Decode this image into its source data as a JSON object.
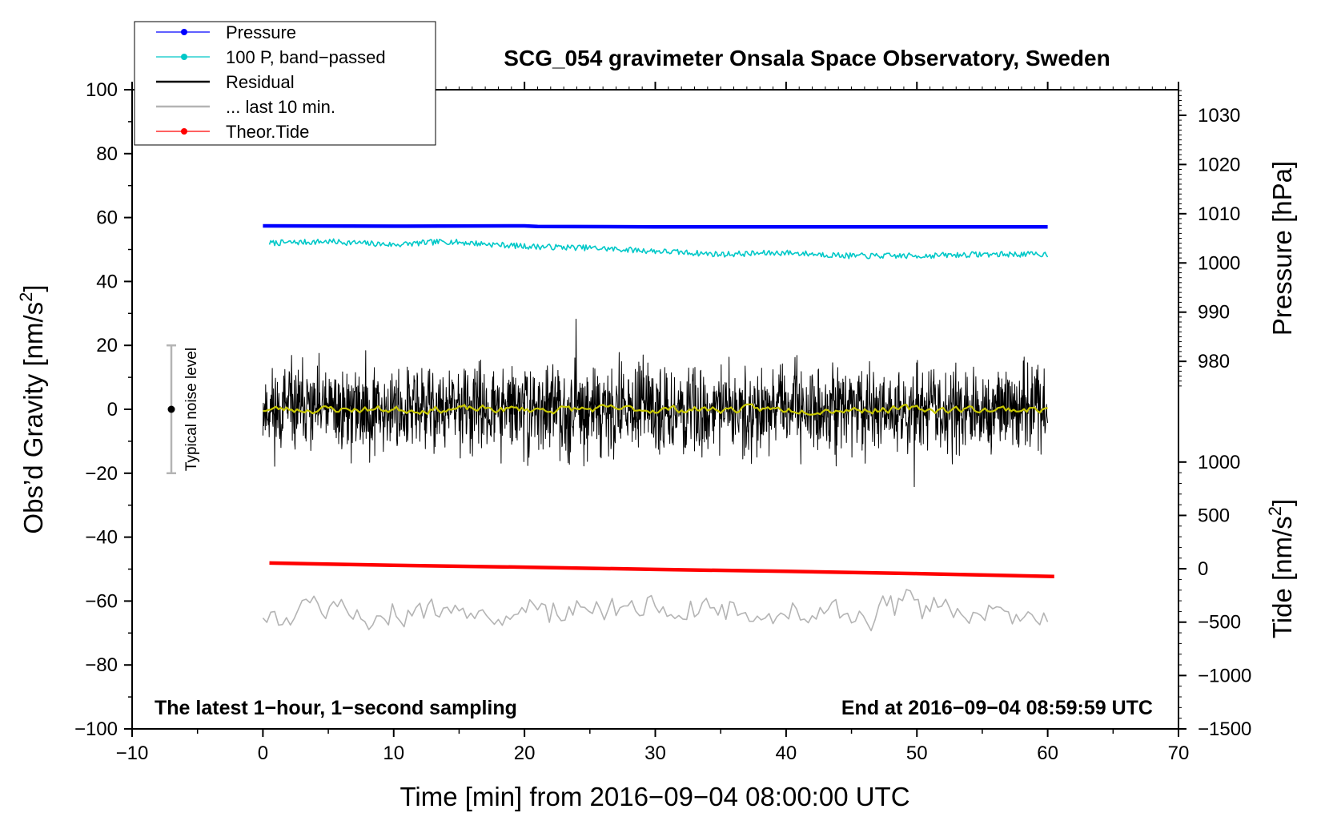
{
  "chart_data": {
    "type": "line",
    "title": "SCG_054 gravimeter Onsala Space Observatory, Sweden",
    "xlabel": "Time [min] from 2016−09−04 08:00:00 UTC",
    "ylabel_left_main": "Obs’d Gravity [nm/s",
    "ylabel_left_sup": "2",
    "ylabel_left_end": "]",
    "ylabel_right_pressure": "Pressure [hPa]",
    "ylabel_right_tide_main": "Tide [nm/s",
    "ylabel_right_tide_sup": "2",
    "ylabel_right_tide_end": "]",
    "xlim": [
      -10,
      70
    ],
    "ylim": [
      -100,
      100
    ],
    "x_ticks": [
      -10,
      0,
      10,
      20,
      30,
      40,
      50,
      60,
      70
    ],
    "x_tick_labels": [
      "−10",
      "0",
      "10",
      "20",
      "30",
      "40",
      "50",
      "60",
      "70"
    ],
    "y_ticks": [
      -100,
      -80,
      -60,
      -40,
      -20,
      0,
      20,
      40,
      60,
      80,
      100
    ],
    "y_tick_labels": [
      "−100",
      "−80",
      "−60",
      "−40",
      "−20",
      "0",
      "20",
      "40",
      "60",
      "80",
      "100"
    ],
    "pressure_axis": {
      "ticks": [
        980,
        990,
        1000,
        1010,
        1020,
        1030
      ],
      "tick_labels": [
        "980",
        "990",
        "1000",
        "1010",
        "1020",
        "1030"
      ],
      "map": {
        "v0": 980,
        "y0": 15,
        "v1": 1030,
        "y1": 92
      }
    },
    "tide_axis": {
      "ticks": [
        -1500,
        -1000,
        -500,
        0,
        500,
        1000
      ],
      "tick_labels": [
        "−1500",
        "−1000",
        "−500",
        "0",
        "500",
        "1000"
      ],
      "map": {
        "v0": -1500,
        "y0": -100,
        "v1": 1000,
        "y1": -16.5
      }
    },
    "legend": {
      "position": "top-left",
      "entries": [
        {
          "label": "Pressure",
          "color": "#0000ff",
          "marker": true
        },
        {
          "label": "100 P, band−passed",
          "color": "#00c8c8",
          "marker": true
        },
        {
          "label": "Residual",
          "color": "#000000",
          "marker": false
        },
        {
          "label": "... last 10 min.",
          "color": "#b4b4b4",
          "marker": false
        },
        {
          "label": "Theor.Tide",
          "color": "#ff0000",
          "marker": true
        }
      ]
    },
    "series": [
      {
        "name": "Pressure",
        "color": "#0000ff",
        "style": "thick",
        "x": [
          0,
          10,
          20,
          21,
          30,
          40,
          50,
          60
        ],
        "y": [
          57.4,
          57.3,
          57.4,
          57.2,
          57.1,
          57.1,
          57.1,
          57.1
        ]
      },
      {
        "name": "100 P, band−passed",
        "color": "#00c8c8",
        "style": "noisy",
        "noise": 0.9,
        "seed": 7,
        "x": [
          0.5,
          5,
          10,
          14,
          20,
          25,
          30,
          35,
          40,
          45,
          50,
          55,
          60
        ],
        "y": [
          52,
          52.5,
          51.5,
          52.5,
          51,
          50.5,
          49.5,
          48.5,
          49,
          48,
          48,
          48.5,
          48.5
        ]
      },
      {
        "name": "Residual",
        "color": "#000000",
        "style": "noisy",
        "noise": 6.5,
        "seed": 11,
        "step": 0.03,
        "x": [
          0,
          60
        ],
        "y": [
          0,
          0
        ]
      },
      {
        "name": "Residual smoothed",
        "color": "#c8c800",
        "style": "noisy",
        "noise": 1.2,
        "seed": 23,
        "step": 0.2,
        "x": [
          0,
          60
        ],
        "y": [
          0,
          0
        ]
      },
      {
        "name": "... last 10 min.",
        "color": "#b4b4b4",
        "style": "noisy",
        "noise": 6,
        "seed": 5,
        "step": 0.3,
        "x": [
          0,
          60
        ],
        "y": [
          -63,
          -63
        ]
      },
      {
        "name": "Theor.Tide",
        "color": "#ff0000",
        "style": "thick",
        "x": [
          0.5,
          10,
          20,
          30,
          40,
          50,
          60.5
        ],
        "y": [
          -48.1,
          -48.8,
          -49.4,
          -50.1,
          -50.7,
          -51.4,
          -52.3
        ]
      }
    ],
    "noise_bar": {
      "x": -7,
      "center": 0,
      "low": -20,
      "high": 20,
      "label": "Typical noise level"
    },
    "annotations": {
      "left": "The latest 1−hour, 1−second sampling",
      "right": "End at 2016−09−04 08:59:59 UTC"
    }
  }
}
